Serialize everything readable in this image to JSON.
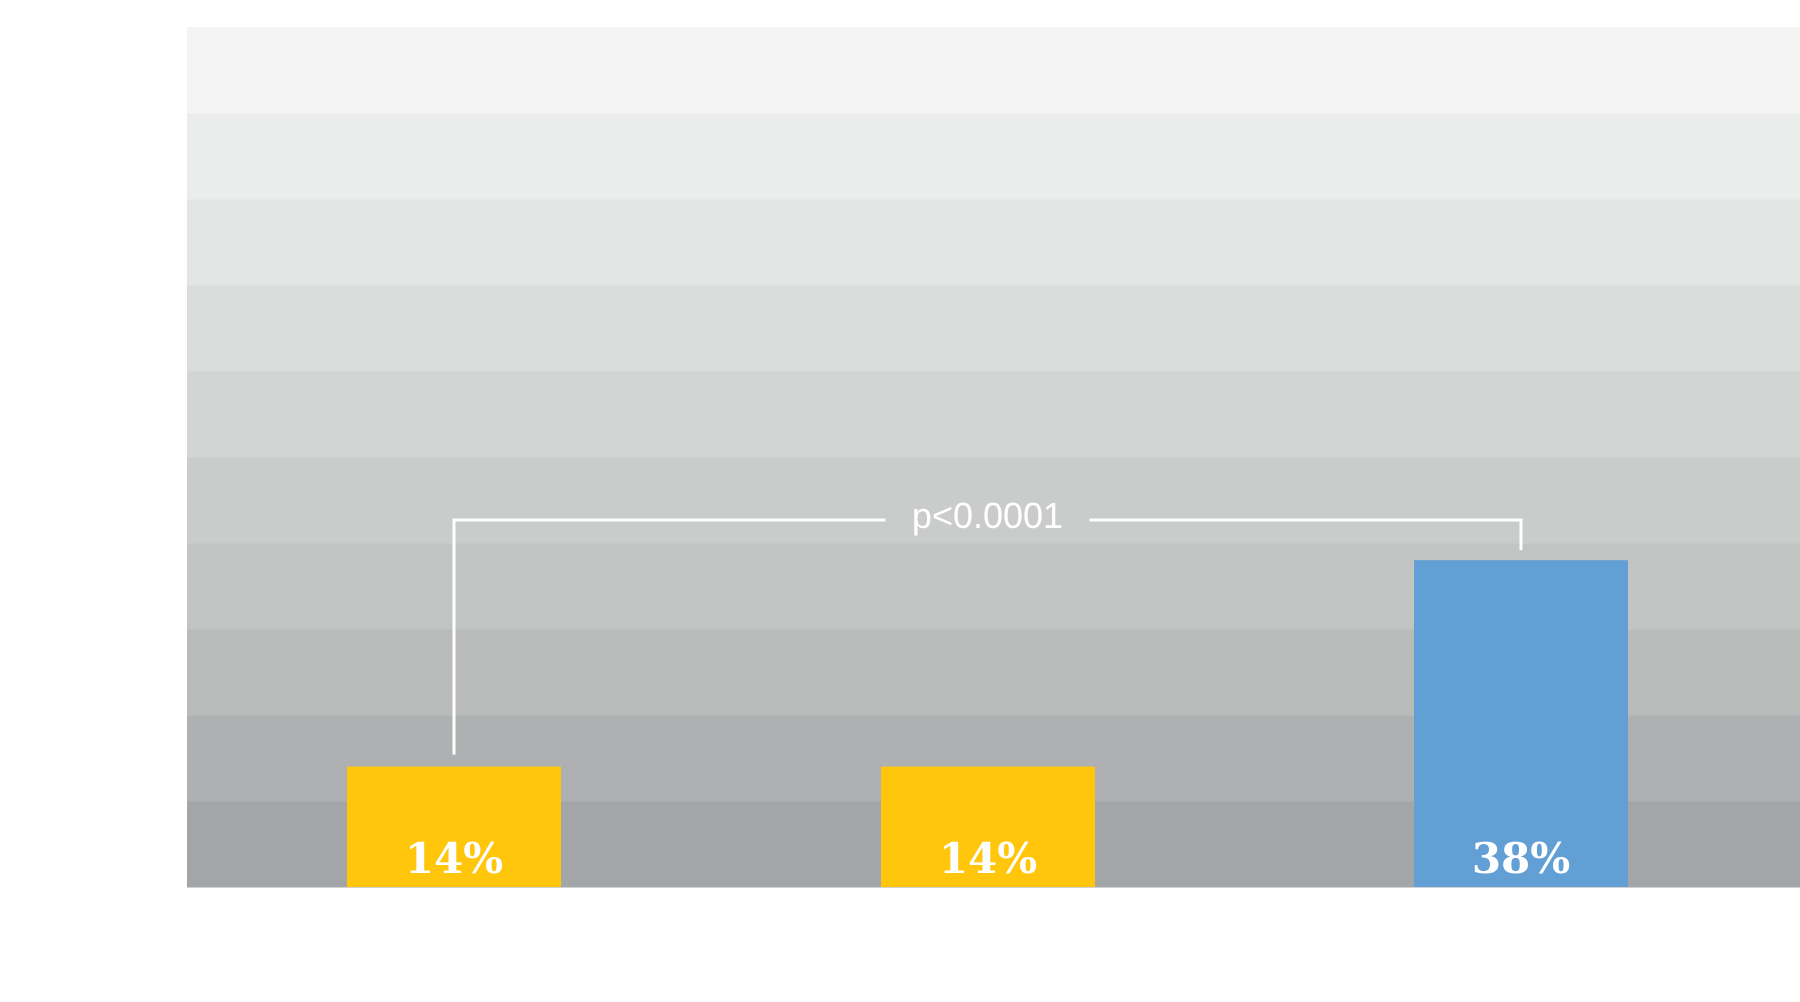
{
  "chart_data": {
    "type": "bar",
    "title": "",
    "xlabel": "",
    "ylabel": "",
    "ylim": [
      0,
      100
    ],
    "grid": "horizontal bands",
    "categories": [
      "",
      "",
      ""
    ],
    "values": [
      14,
      14,
      38
    ],
    "value_labels": [
      "14%",
      "14%",
      "38%"
    ],
    "bar_colors": [
      "#ffc60b",
      "#ffc60b",
      "#629fd4"
    ],
    "band_colors": [
      "#a3a6a7",
      "#aeb0b1",
      "#b9bbba",
      "#c2c4c3",
      "#cacccb",
      "#d3d5d4",
      "#dbdddc",
      "#e3e5e4",
      "#ebedec",
      "#f4f4f4"
    ],
    "annotation": {
      "text": "p<0.0001",
      "from_bar": 0,
      "to_bar": 2,
      "color": "#ffffff"
    }
  }
}
